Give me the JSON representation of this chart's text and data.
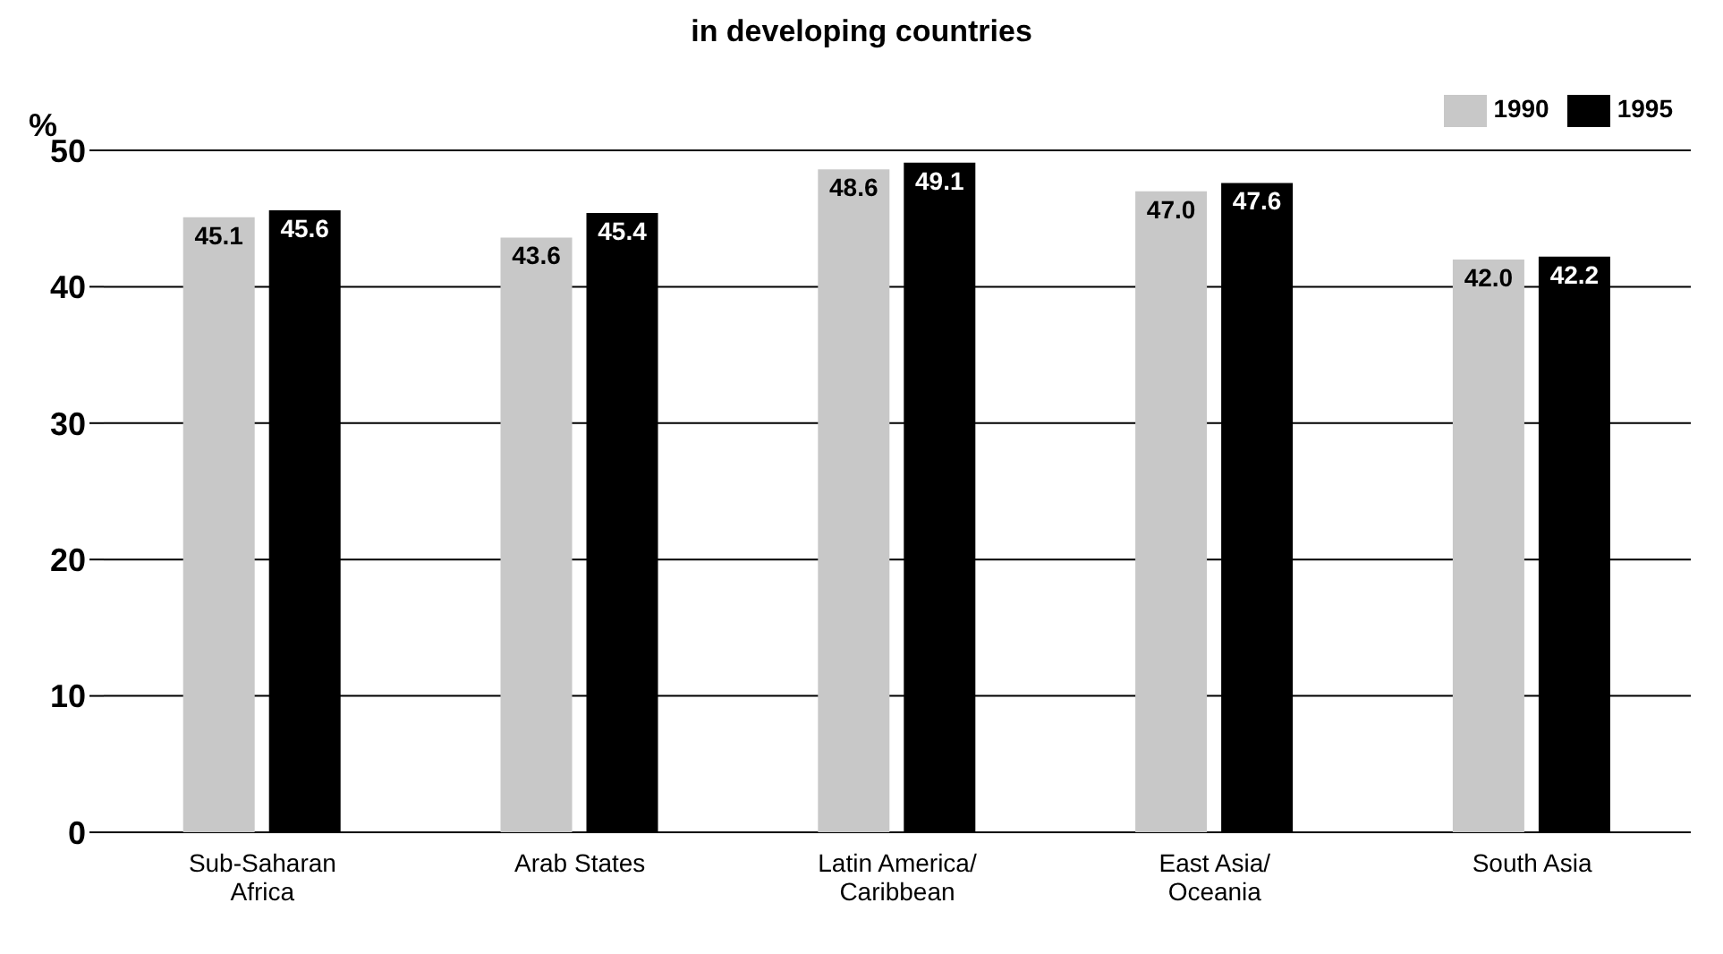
{
  "chart_data": {
    "type": "bar",
    "title": "in developing countries",
    "ylabel": "%",
    "categories": [
      "Sub-Saharan Africa",
      "Arab States",
      "Latin America/ Caribbean",
      "East Asia/ Oceania",
      "South Asia"
    ],
    "series": [
      {
        "name": "1990",
        "color": "#c8c8c8",
        "values": [
          45.1,
          43.6,
          48.6,
          47.0,
          42.0
        ],
        "value_labels": [
          "45.1",
          "43.6",
          "48.6",
          "47.0",
          "42.0"
        ]
      },
      {
        "name": "1995",
        "color": "#000000",
        "values": [
          45.6,
          45.4,
          49.1,
          47.6,
          42.2
        ],
        "value_labels": [
          "45.6",
          "45.4",
          "49.1",
          "47.6",
          "42.2"
        ]
      }
    ],
    "ylim": [
      0,
      50
    ],
    "yticks": [
      0,
      10,
      20,
      30,
      40,
      50
    ],
    "grid": "y",
    "legend": "top right"
  }
}
